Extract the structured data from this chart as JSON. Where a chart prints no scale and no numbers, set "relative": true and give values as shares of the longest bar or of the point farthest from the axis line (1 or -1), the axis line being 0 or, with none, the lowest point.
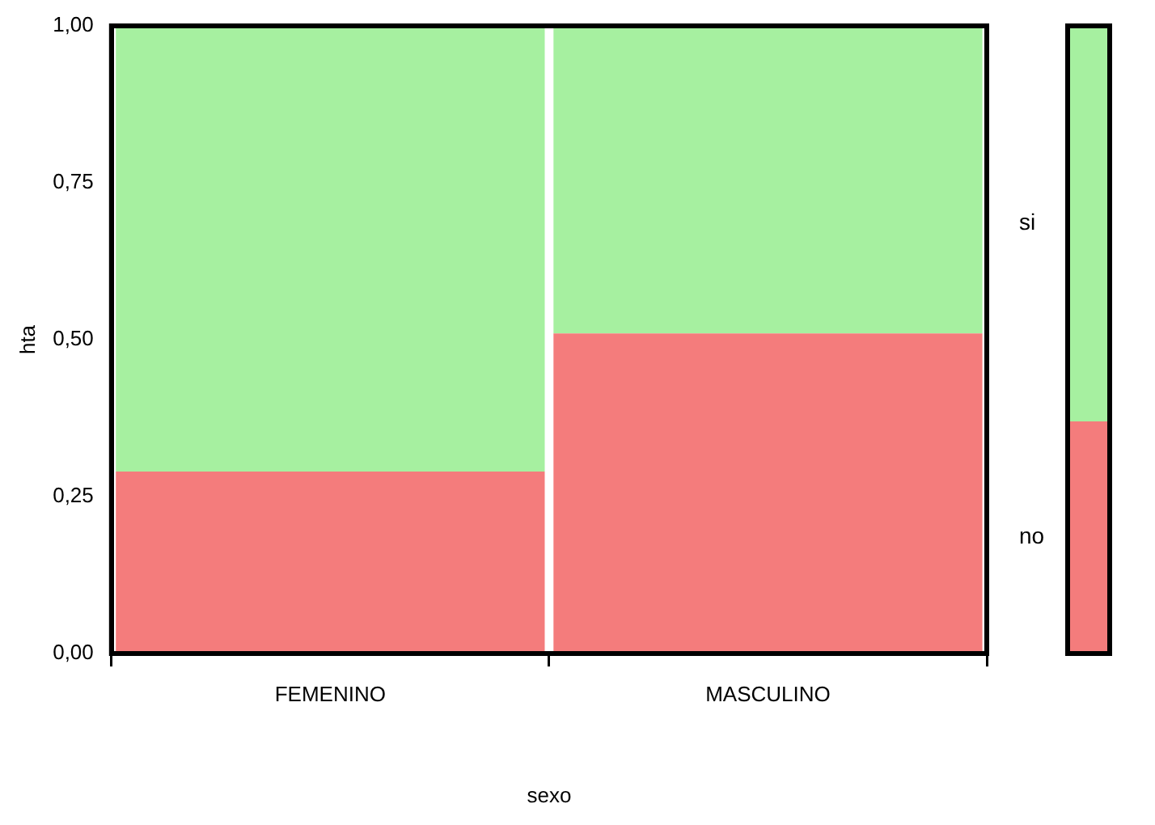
{
  "chart_data": [
    {
      "type": "bar",
      "stacked": true,
      "xlabel": "sexo",
      "ylabel": "hta",
      "categories": [
        "FEMENINO",
        "MASCULINO"
      ],
      "ylim": [
        0,
        1
      ],
      "yticks": [
        {
          "value": 0,
          "label": "0,00"
        },
        {
          "value": 0.25,
          "label": "0,25"
        },
        {
          "value": 0.5,
          "label": "0,50"
        },
        {
          "value": 0.75,
          "label": "0,75"
        },
        {
          "value": 1,
          "label": "1,00"
        }
      ],
      "series": [
        {
          "color": "#f47c7c",
          "values": [
            0.29,
            0.51
          ]
        },
        {
          "color": "#a6f0a0",
          "values": [
            0.71,
            0.49
          ]
        }
      ]
    },
    {
      "type": "bar",
      "stacked": true,
      "relative": true,
      "categories": [
        null
      ],
      "tick_labels": false,
      "series": [
        {
          "name": "no",
          "color": "#f47c7c",
          "values": [
            0.37
          ]
        },
        {
          "name": "si",
          "color": "#a6f0a0",
          "values": [
            0.63
          ]
        }
      ]
    }
  ]
}
